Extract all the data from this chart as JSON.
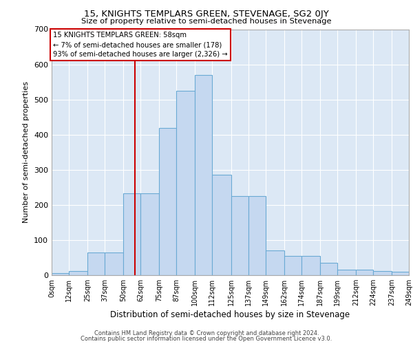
{
  "title": "15, KNIGHTS TEMPLARS GREEN, STEVENAGE, SG2 0JY",
  "subtitle": "Size of property relative to semi-detached houses in Stevenage",
  "xlabel": "Distribution of semi-detached houses by size in Stevenage",
  "ylabel": "Number of semi-detached properties",
  "footer_line1": "Contains HM Land Registry data © Crown copyright and database right 2024.",
  "footer_line2": "Contains public sector information licensed under the Open Government Licence v3.0.",
  "annotation_title": "15 KNIGHTS TEMPLARS GREEN: 58sqm",
  "annotation_line1": "← 7% of semi-detached houses are smaller (178)",
  "annotation_line2": "93% of semi-detached houses are larger (2,326) →",
  "property_size": 58,
  "bin_edges": [
    0,
    12,
    25,
    37,
    50,
    62,
    75,
    87,
    100,
    112,
    125,
    137,
    149,
    162,
    174,
    187,
    199,
    212,
    224,
    237,
    249
  ],
  "bar_heights": [
    5,
    12,
    65,
    65,
    233,
    233,
    420,
    525,
    570,
    285,
    225,
    225,
    70,
    55,
    55,
    35,
    15,
    15,
    12,
    10
  ],
  "tick_labels": [
    "0sqm",
    "12sqm",
    "25sqm",
    "37sqm",
    "50sqm",
    "62sqm",
    "75sqm",
    "87sqm",
    "100sqm",
    "112sqm",
    "125sqm",
    "137sqm",
    "149sqm",
    "162sqm",
    "174sqm",
    "187sqm",
    "199sqm",
    "212sqm",
    "224sqm",
    "237sqm",
    "249sqm"
  ],
  "bar_color": "#c5d8f0",
  "bar_edge_color": "#6aaad4",
  "vline_color": "#cc0000",
  "annotation_edge_color": "#cc0000",
  "bg_color": "#dce8f5",
  "grid_color": "#ffffff",
  "ylim": [
    0,
    700
  ],
  "yticks": [
    0,
    100,
    200,
    300,
    400,
    500,
    600,
    700
  ]
}
